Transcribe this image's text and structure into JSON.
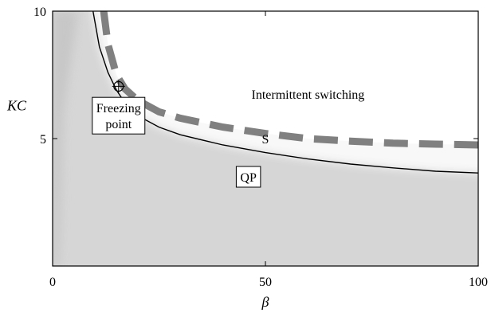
{
  "chart_data": {
    "type": "line",
    "xlabel": "β",
    "ylabel": "KC",
    "xlim": [
      0,
      100
    ],
    "ylim": [
      0,
      10
    ],
    "x_ticks": [
      0,
      50,
      100
    ],
    "y_ticks": [
      5,
      10
    ],
    "x_tick_labels": [
      "0",
      "50",
      "100"
    ],
    "y_tick_labels": [
      "5",
      "10"
    ],
    "grid": false,
    "colors": {
      "qp_region": "#d6d6d6",
      "switching_region": "#ffffff",
      "dashed_curve": "#808080",
      "solid_curve": "#000000"
    },
    "series": [
      {
        "kind": "solid",
        "x": [
          9.5,
          11,
          13,
          15,
          17,
          20,
          25,
          30,
          40,
          50,
          60,
          70,
          80,
          90,
          100
        ],
        "y": [
          10,
          8.6,
          7.6,
          6.9,
          6.4,
          5.9,
          5.45,
          5.15,
          4.75,
          4.45,
          4.2,
          4.0,
          3.85,
          3.72,
          3.65
        ]
      },
      {
        "kind": "dashed",
        "x": [
          12,
          13,
          15,
          17,
          20,
          25,
          30,
          40,
          50,
          60,
          70,
          80,
          90,
          100
        ],
        "y": [
          10,
          8.7,
          7.5,
          6.95,
          6.5,
          6.05,
          5.8,
          5.45,
          5.2,
          5.0,
          4.9,
          4.82,
          4.78,
          4.75
        ]
      }
    ],
    "annotations": [
      {
        "id": "intermittent",
        "text": "Intermittent switching",
        "x": 60,
        "y": 6.75,
        "boxed": false
      },
      {
        "id": "s",
        "text": "S",
        "x": 50,
        "y": 5.0,
        "boxed": false
      },
      {
        "id": "qp",
        "text": "QP",
        "x": 46,
        "y": 3.5,
        "boxed": true
      },
      {
        "id": "freezing",
        "lines": [
          "Freezing",
          "point"
        ],
        "x": 15.5,
        "y": 5.9,
        "boxed": true
      }
    ],
    "freezing_point": {
      "x": 15.5,
      "y": 7.05
    }
  }
}
